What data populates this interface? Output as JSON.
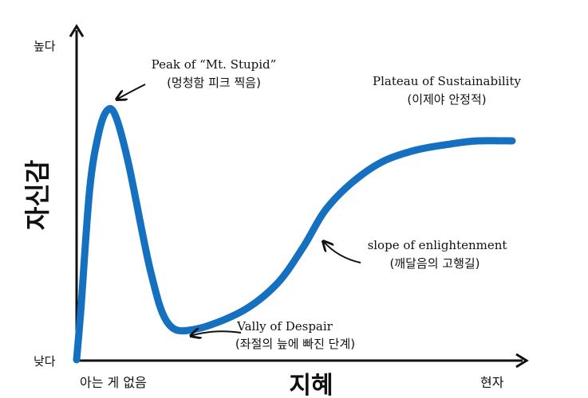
{
  "chart_data": {
    "type": "line",
    "title": "",
    "xlabel": "지혜",
    "ylabel": "자신감",
    "x_tick_labels": {
      "start": "아는 게 없음",
      "end": "현자"
    },
    "y_tick_labels": {
      "bottom": "낮다",
      "top": "높다"
    },
    "xlim": [
      0,
      100
    ],
    "ylim": [
      0,
      100
    ],
    "grid": false,
    "series": [
      {
        "color": "#1570c0",
        "x": [
          0,
          1,
          3,
          5,
          7,
          9,
          12,
          17,
          21,
          27,
          38,
          46,
          52,
          57,
          63,
          70,
          78,
          86,
          92,
          100
        ],
        "y": [
          0,
          17,
          56,
          74,
          82,
          80,
          64,
          29,
          12,
          10,
          16,
          25,
          37,
          49,
          58,
          65,
          69,
          71,
          72,
          72
        ]
      }
    ],
    "annotations": [
      {
        "id": "peak",
        "text": "Peak of “Mt. Stupid”",
        "subtext": "(멍청함 피크 찍음)"
      },
      {
        "id": "valley",
        "text": "Vally of Despair",
        "subtext": "(좌절의 늪에 빠진 단계)"
      },
      {
        "id": "slope",
        "text": "slope of enlightenment",
        "subtext": "(깨달음의 고행길)"
      },
      {
        "id": "plateau",
        "text": "Plateau of Sustainability",
        "subtext": "(이제야 안정적)"
      }
    ]
  }
}
